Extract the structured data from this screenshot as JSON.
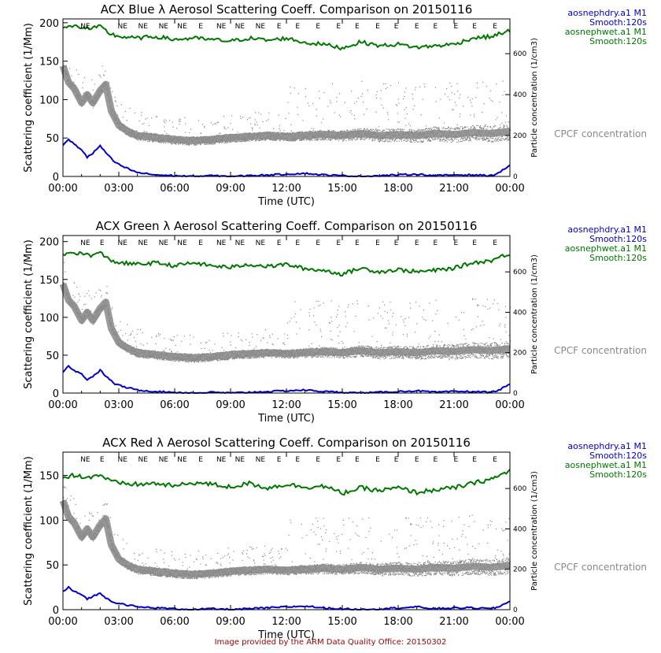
{
  "colors": {
    "dry": "#0000cc",
    "wet": "#007700",
    "cpcf": "#888888",
    "axis": "#000000",
    "footer": "#990000"
  },
  "footer": "Image provided by the ARM Data Quality Office: 20150302",
  "chart_data": [
    {
      "type": "line",
      "title": "ACX Blue λ Aerosol Scattering Coeff. Comparison on 20150116",
      "xlabel": "Time (UTC)",
      "ylabel": "Scattering coefficient (1/Mm)",
      "y2label": "Particle concentration (1/cm3)",
      "xlim": [
        0,
        24
      ],
      "ylim": [
        0,
        205
      ],
      "y2lim": [
        0,
        770
      ],
      "xticks": [
        0,
        3,
        6,
        9,
        12,
        15,
        18,
        21,
        24
      ],
      "xticklabels": [
        "00:00",
        "03:00",
        "06:00",
        "09:00",
        "12:00",
        "15:00",
        "18:00",
        "21:00",
        "00:00"
      ],
      "yticks": [
        0,
        50,
        100,
        150,
        200
      ],
      "y2ticks": [
        0,
        200,
        400,
        600
      ],
      "legend": [
        {
          "label": "aosnephdry.a1 M1",
          "color": "dry"
        },
        {
          "label": "Smooth:120s",
          "color": "dry"
        },
        {
          "label": "aosnephwet.a1 M1",
          "color": "wet"
        },
        {
          "label": "Smooth:120s",
          "color": "wet"
        }
      ],
      "cpcf_label": "CPCF concentration",
      "flags": [
        {
          "t": 1.2,
          "label": "NE"
        },
        {
          "t": 3.2,
          "label": "NE"
        },
        {
          "t": 4.3,
          "label": "NE"
        },
        {
          "t": 5.4,
          "label": "NE"
        },
        {
          "t": 6.4,
          "label": "NE"
        },
        {
          "t": 7.4,
          "label": "E"
        },
        {
          "t": 8.5,
          "label": "NE"
        },
        {
          "t": 9.5,
          "label": "NE"
        },
        {
          "t": 10.6,
          "label": "NE"
        },
        {
          "t": 11.6,
          "label": "E"
        },
        {
          "t": 12.6,
          "label": "E"
        },
        {
          "t": 13.7,
          "label": "E"
        },
        {
          "t": 14.8,
          "label": "E"
        },
        {
          "t": 15.8,
          "label": "E"
        },
        {
          "t": 16.9,
          "label": "E"
        },
        {
          "t": 17.9,
          "label": "E"
        },
        {
          "t": 19.0,
          "label": "E"
        },
        {
          "t": 20.0,
          "label": "E"
        },
        {
          "t": 21.1,
          "label": "E"
        },
        {
          "t": 22.1,
          "label": "E"
        },
        {
          "t": 23.2,
          "label": "E"
        }
      ],
      "series": [
        {
          "name": "aosnephwet.a1 M1 Smooth:120s",
          "color": "wet",
          "x": [
            0,
            0.5,
            1,
            1.5,
            2,
            2.5,
            3,
            4,
            5,
            6,
            7,
            8,
            9,
            10,
            11,
            12,
            13,
            14,
            15,
            16,
            17,
            18,
            19,
            20,
            21,
            22,
            23,
            23.5,
            24
          ],
          "y": [
            192,
            196,
            194,
            192,
            195,
            186,
            182,
            180,
            182,
            178,
            180,
            178,
            176,
            180,
            177,
            180,
            174,
            172,
            167,
            175,
            170,
            172,
            168,
            170,
            172,
            180,
            182,
            186,
            190
          ]
        },
        {
          "name": "aosnephdry.a1 M1 Smooth:120s",
          "color": "dry",
          "x": [
            0,
            0.3,
            0.6,
            1.0,
            1.3,
            1.6,
            2.0,
            2.4,
            2.8,
            3.3,
            4,
            5,
            6,
            7,
            8,
            9,
            10,
            11,
            12,
            13,
            14,
            15,
            16,
            17,
            18,
            19,
            20,
            21,
            22,
            23,
            23.5,
            24
          ],
          "y": [
            40,
            48,
            42,
            35,
            25,
            30,
            40,
            28,
            18,
            12,
            5,
            2,
            1,
            0,
            1,
            0,
            1,
            2,
            3,
            4,
            2,
            1,
            0,
            1,
            2,
            3,
            1,
            2,
            2,
            1,
            6,
            15
          ]
        },
        {
          "name": "CPCF concentration",
          "color": "cpcf",
          "axis": "y2",
          "x": [
            0,
            0.3,
            0.6,
            1.0,
            1.3,
            1.6,
            2.0,
            2.3,
            2.6,
            3.0,
            3.5,
            4,
            5,
            6,
            7,
            8,
            9,
            10,
            11,
            12,
            13,
            14,
            15,
            16,
            17,
            18,
            19,
            20,
            21,
            22,
            23,
            24
          ],
          "y": [
            540,
            460,
            430,
            360,
            400,
            360,
            420,
            450,
            320,
            250,
            220,
            200,
            190,
            180,
            175,
            180,
            190,
            195,
            200,
            195,
            200,
            205,
            200,
            210,
            200,
            205,
            200,
            210,
            205,
            215,
            210,
            220
          ]
        }
      ]
    },
    {
      "type": "line",
      "title": "ACX Green λ Aerosol Scattering Coeff. Comparison on 20150116",
      "xlabel": "Time (UTC)",
      "ylabel": "Scattering coefficient (1/Mm)",
      "y2label": "Particle concentration (1/cm3)",
      "xlim": [
        0,
        24
      ],
      "ylim": [
        0,
        208
      ],
      "y2lim": [
        0,
        780
      ],
      "xticks": [
        0,
        3,
        6,
        9,
        12,
        15,
        18,
        21,
        24
      ],
      "xticklabels": [
        "00:00",
        "03:00",
        "06:00",
        "09:00",
        "12:00",
        "15:00",
        "18:00",
        "21:00",
        "00:00"
      ],
      "yticks": [
        0,
        50,
        100,
        150,
        200
      ],
      "y2ticks": [
        0,
        200,
        400,
        600
      ],
      "legend": [
        {
          "label": "aosnephdry.a1 M1",
          "color": "dry"
        },
        {
          "label": "Smooth:120s",
          "color": "dry"
        },
        {
          "label": "aosnephwet.a1 M1",
          "color": "wet"
        },
        {
          "label": "Smooth:120s",
          "color": "wet"
        }
      ],
      "cpcf_label": "CPCF concentration",
      "flags": [
        {
          "t": 1.2,
          "label": "NE"
        },
        {
          "t": 2.1,
          "label": "E"
        },
        {
          "t": 3.2,
          "label": "NE"
        },
        {
          "t": 4.3,
          "label": "NE"
        },
        {
          "t": 5.4,
          "label": "NE"
        },
        {
          "t": 6.4,
          "label": "NE"
        },
        {
          "t": 7.4,
          "label": "E"
        },
        {
          "t": 8.5,
          "label": "NE"
        },
        {
          "t": 9.5,
          "label": "NE"
        },
        {
          "t": 10.6,
          "label": "NE"
        },
        {
          "t": 11.6,
          "label": "E"
        },
        {
          "t": 12.6,
          "label": "E"
        },
        {
          "t": 13.7,
          "label": "E"
        },
        {
          "t": 14.8,
          "label": "E"
        },
        {
          "t": 15.8,
          "label": "E"
        },
        {
          "t": 16.9,
          "label": "E"
        },
        {
          "t": 17.9,
          "label": "E"
        },
        {
          "t": 19.0,
          "label": "E"
        },
        {
          "t": 20.0,
          "label": "E"
        },
        {
          "t": 21.1,
          "label": "E"
        },
        {
          "t": 22.1,
          "label": "E"
        },
        {
          "t": 23.2,
          "label": "E"
        }
      ],
      "series": [
        {
          "name": "aosnephwet.a1 M1 Smooth:120s",
          "color": "wet",
          "x": [
            0,
            0.5,
            1,
            1.5,
            2,
            2.5,
            3,
            4,
            5,
            6,
            7,
            8,
            9,
            10,
            11,
            12,
            13,
            14,
            15,
            16,
            17,
            18,
            19,
            20,
            21,
            22,
            23,
            23.5,
            24
          ],
          "y": [
            182,
            186,
            184,
            182,
            185,
            176,
            172,
            170,
            172,
            168,
            172,
            168,
            166,
            170,
            167,
            170,
            164,
            162,
            157,
            165,
            160,
            163,
            160,
            162,
            165,
            172,
            175,
            180,
            184
          ]
        },
        {
          "name": "aosnephdry.a1 M1 Smooth:120s",
          "color": "dry",
          "x": [
            0,
            0.3,
            0.6,
            1.0,
            1.3,
            1.6,
            2.0,
            2.4,
            2.8,
            3.3,
            4,
            5,
            6,
            7,
            8,
            9,
            10,
            11,
            12,
            13,
            14,
            15,
            16,
            17,
            18,
            19,
            20,
            21,
            22,
            23,
            23.5,
            24
          ],
          "y": [
            28,
            36,
            30,
            25,
            18,
            22,
            30,
            20,
            12,
            8,
            4,
            2,
            1,
            0,
            1,
            0,
            1,
            2,
            3,
            4,
            2,
            1,
            0,
            1,
            2,
            3,
            1,
            2,
            2,
            1,
            5,
            12
          ]
        },
        {
          "name": "CPCF concentration",
          "color": "cpcf",
          "axis": "y2",
          "x": [
            0,
            0.3,
            0.6,
            1.0,
            1.3,
            1.6,
            2.0,
            2.3,
            2.6,
            3.0,
            3.5,
            4,
            5,
            6,
            7,
            8,
            9,
            10,
            11,
            12,
            13,
            14,
            15,
            16,
            17,
            18,
            19,
            20,
            21,
            22,
            23,
            24
          ],
          "y": [
            540,
            460,
            430,
            360,
            400,
            360,
            420,
            450,
            320,
            250,
            220,
            200,
            190,
            180,
            175,
            180,
            190,
            195,
            200,
            195,
            200,
            205,
            200,
            210,
            200,
            205,
            200,
            210,
            205,
            215,
            210,
            220
          ]
        }
      ]
    },
    {
      "type": "line",
      "title": "ACX Red λ Aerosol Scattering Coeff. Comparison on 20150116",
      "xlabel": "Time (UTC)",
      "ylabel": "Scattering coefficient (1/Mm)",
      "y2label": "Particle concentration (1/cm3)",
      "xlim": [
        0,
        24
      ],
      "ylim": [
        0,
        176
      ],
      "y2lim": [
        0,
        780
      ],
      "xticks": [
        0,
        3,
        6,
        9,
        12,
        15,
        18,
        21,
        24
      ],
      "xticklabels": [
        "00:00",
        "03:00",
        "06:00",
        "09:00",
        "12:00",
        "15:00",
        "18:00",
        "21:00",
        "00:00"
      ],
      "yticks": [
        0,
        50,
        100,
        150
      ],
      "y2ticks": [
        0,
        200,
        400,
        600
      ],
      "legend": [
        {
          "label": "aosnephdry.a1 M1",
          "color": "dry"
        },
        {
          "label": "Smooth:120s",
          "color": "dry"
        },
        {
          "label": "aosnephwet.a1 M1",
          "color": "wet"
        },
        {
          "label": "Smooth:120s",
          "color": "wet"
        }
      ],
      "cpcf_label": "CPCF concentration",
      "flags": [
        {
          "t": 1.2,
          "label": "NE"
        },
        {
          "t": 2.1,
          "label": "E"
        },
        {
          "t": 3.2,
          "label": "NE"
        },
        {
          "t": 4.3,
          "label": "NE"
        },
        {
          "t": 5.4,
          "label": "NE"
        },
        {
          "t": 6.4,
          "label": "NE"
        },
        {
          "t": 7.4,
          "label": "E"
        },
        {
          "t": 8.5,
          "label": "NE"
        },
        {
          "t": 9.5,
          "label": "NE"
        },
        {
          "t": 10.6,
          "label": "NE"
        },
        {
          "t": 11.6,
          "label": "E"
        },
        {
          "t": 12.6,
          "label": "E"
        },
        {
          "t": 13.7,
          "label": "E"
        },
        {
          "t": 14.8,
          "label": "E"
        },
        {
          "t": 15.8,
          "label": "E"
        },
        {
          "t": 16.9,
          "label": "E"
        },
        {
          "t": 17.9,
          "label": "E"
        },
        {
          "t": 19.0,
          "label": "E"
        },
        {
          "t": 20.0,
          "label": "E"
        },
        {
          "t": 21.1,
          "label": "E"
        },
        {
          "t": 22.1,
          "label": "E"
        },
        {
          "t": 23.2,
          "label": "E"
        }
      ],
      "series": [
        {
          "name": "aosnephwet.a1 M1 Smooth:120s",
          "color": "wet",
          "x": [
            0,
            0.5,
            1,
            1.5,
            2,
            2.5,
            3,
            4,
            5,
            6,
            7,
            8,
            9,
            10,
            11,
            12,
            13,
            14,
            15,
            16,
            17,
            18,
            19,
            20,
            21,
            22,
            23,
            23.5,
            24
          ],
          "y": [
            148,
            150,
            149,
            148,
            151,
            144,
            141,
            140,
            141,
            138,
            142,
            140,
            137,
            141,
            136,
            140,
            137,
            138,
            130,
            136,
            133,
            136,
            131,
            134,
            136,
            141,
            146,
            150,
            156
          ]
        },
        {
          "name": "aosnephdry.a1 M1 Smooth:120s",
          "color": "dry",
          "x": [
            0,
            0.3,
            0.6,
            1.0,
            1.3,
            1.6,
            2.0,
            2.4,
            2.8,
            3.3,
            4,
            5,
            6,
            7,
            8,
            9,
            10,
            11,
            12,
            13,
            14,
            15,
            16,
            17,
            18,
            19,
            20,
            21,
            22,
            23,
            23.5,
            24
          ],
          "y": [
            20,
            25,
            20,
            17,
            12,
            15,
            18,
            12,
            8,
            6,
            3,
            2,
            1,
            0,
            1,
            0,
            1,
            2,
            3,
            4,
            2,
            1,
            0,
            1,
            2,
            3,
            1,
            2,
            2,
            1,
            4,
            10
          ]
        },
        {
          "name": "CPCF concentration",
          "color": "cpcf",
          "axis": "y2",
          "x": [
            0,
            0.3,
            0.6,
            1.0,
            1.3,
            1.6,
            2.0,
            2.3,
            2.6,
            3.0,
            3.5,
            4,
            5,
            6,
            7,
            8,
            9,
            10,
            11,
            12,
            13,
            14,
            15,
            16,
            17,
            18,
            19,
            20,
            21,
            22,
            23,
            24
          ],
          "y": [
            540,
            460,
            430,
            360,
            400,
            360,
            420,
            450,
            320,
            250,
            220,
            200,
            190,
            180,
            175,
            180,
            190,
            195,
            200,
            195,
            200,
            205,
            200,
            210,
            200,
            205,
            200,
            210,
            205,
            215,
            210,
            220
          ]
        }
      ]
    }
  ]
}
